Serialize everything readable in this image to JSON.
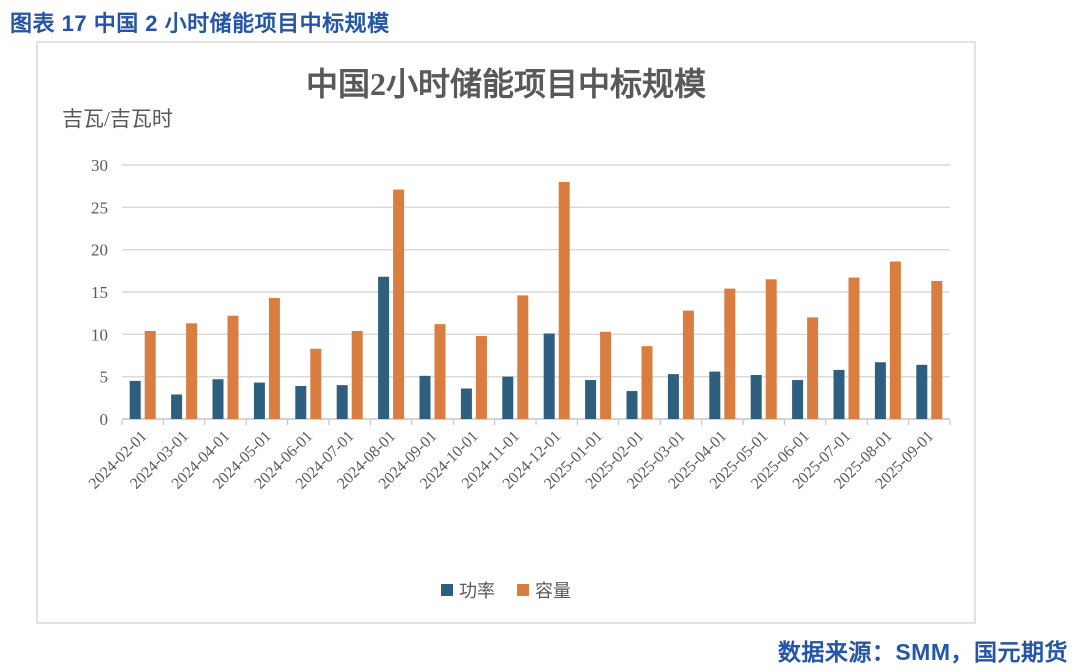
{
  "caption": "图表 17 中国 2 小时储能项目中标规模",
  "source": "数据来源：SMM，国元期货",
  "chart_data": {
    "type": "bar",
    "title": "中国2小时储能项目中标规模",
    "unit_label": "吉瓦/吉瓦时",
    "xlabel": "",
    "ylabel": "吉瓦/吉瓦时",
    "ylim": [
      0,
      30
    ],
    "ytick_step": 5,
    "yticks": [
      0,
      5,
      10,
      15,
      20,
      25,
      30
    ],
    "grid": true,
    "legend_position": "bottom",
    "categories": [
      "2024-02-01",
      "2024-03-01",
      "2024-04-01",
      "2024-05-01",
      "2024-06-01",
      "2024-07-01",
      "2024-08-01",
      "2024-09-01",
      "2024-10-01",
      "2024-11-01",
      "2024-12-01",
      "2025-01-01",
      "2025-02-01",
      "2025-03-01",
      "2025-04-01",
      "2025-05-01",
      "2025-06-01",
      "2025-07-01",
      "2025-08-01",
      "2025-09-01"
    ],
    "series": [
      {
        "name": "功率",
        "color": "#2E5F7E",
        "values": [
          4.5,
          2.9,
          4.7,
          4.3,
          3.9,
          4.0,
          16.8,
          5.1,
          3.6,
          5.0,
          10.1,
          4.6,
          3.3,
          5.3,
          5.6,
          5.2,
          4.6,
          5.8,
          6.7,
          6.4
        ]
      },
      {
        "name": "容量",
        "color": "#D97D41",
        "values": [
          10.4,
          11.3,
          12.2,
          14.3,
          8.3,
          10.4,
          27.1,
          11.2,
          9.8,
          14.6,
          28.0,
          10.3,
          8.6,
          12.8,
          15.4,
          16.5,
          12.0,
          16.7,
          18.6,
          16.3
        ]
      }
    ]
  },
  "colors": {
    "accent_blue_text": "#2456A5",
    "axis_text": "#595959",
    "gridline": "#D9D9D9",
    "baseline": "#C4C4C4",
    "chart_border": "#E2E2E2"
  }
}
